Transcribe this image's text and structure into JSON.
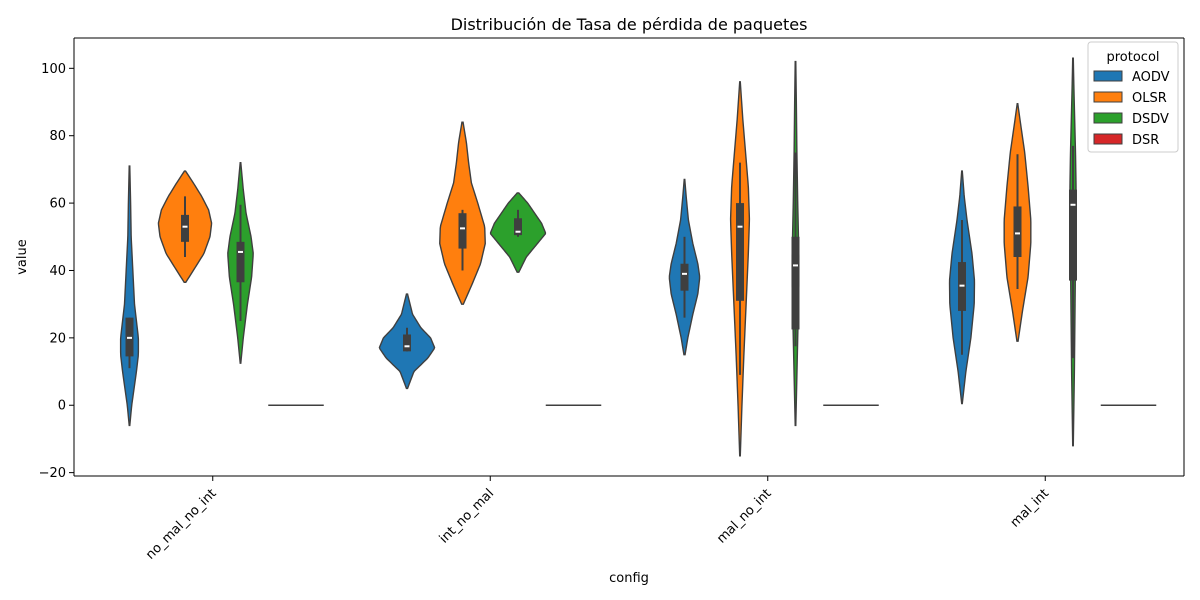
{
  "chart_data": {
    "type": "violin",
    "title": "Distribución de Tasa de pérdida de paquetes",
    "xlabel": "config",
    "ylabel": "value",
    "ylim": [
      -21,
      109
    ],
    "yticks": [
      -20,
      0,
      20,
      40,
      60,
      80,
      100
    ],
    "categories": [
      "no_mal_no_int",
      "int_no_mal",
      "mal_no_int",
      "mal_int"
    ],
    "legend": {
      "title": "protocol",
      "position": "top-right"
    },
    "series": [
      {
        "name": "AODV",
        "color": "#1f77b4",
        "violins": [
          {
            "min": -6,
            "max": 71,
            "q1": 14.5,
            "median": 20,
            "q3": 26,
            "whisker_low": 11,
            "whisker_high": 26,
            "profile": [
              [
                -6,
                0.01
              ],
              [
                0,
                0.08
              ],
              [
                10,
                0.25
              ],
              [
                15,
                0.32
              ],
              [
                20,
                0.32
              ],
              [
                25,
                0.25
              ],
              [
                30,
                0.18
              ],
              [
                40,
                0.12
              ],
              [
                50,
                0.06
              ],
              [
                60,
                0.04
              ],
              [
                71,
                0.01
              ]
            ]
          },
          {
            "min": 5,
            "max": 33,
            "q1": 16,
            "median": 17.5,
            "q3": 21,
            "whisker_low": 16,
            "whisker_high": 23,
            "profile": [
              [
                5,
                0.02
              ],
              [
                10,
                0.25
              ],
              [
                14,
                0.75
              ],
              [
                17,
                1.0
              ],
              [
                20,
                0.85
              ],
              [
                23,
                0.5
              ],
              [
                27,
                0.2
              ],
              [
                33,
                0.02
              ]
            ]
          },
          {
            "min": 15,
            "max": 67,
            "q1": 34,
            "median": 39,
            "q3": 42,
            "whisker_low": 26,
            "whisker_high": 50,
            "profile": [
              [
                15,
                0.02
              ],
              [
                20,
                0.12
              ],
              [
                27,
                0.3
              ],
              [
                33,
                0.48
              ],
              [
                38,
                0.55
              ],
              [
                42,
                0.48
              ],
              [
                48,
                0.3
              ],
              [
                55,
                0.14
              ],
              [
                62,
                0.06
              ],
              [
                67,
                0.01
              ]
            ]
          },
          {
            "min": 0.5,
            "max": 69.5,
            "q1": 28,
            "median": 35.5,
            "q3": 42.5,
            "whisker_low": 15,
            "whisker_high": 55,
            "profile": [
              [
                0.5,
                0.01
              ],
              [
                10,
                0.14
              ],
              [
                20,
                0.32
              ],
              [
                30,
                0.44
              ],
              [
                37,
                0.45
              ],
              [
                45,
                0.36
              ],
              [
                55,
                0.18
              ],
              [
                62,
                0.08
              ],
              [
                69.5,
                0.01
              ]
            ]
          }
        ]
      },
      {
        "name": "OLSR",
        "color": "#ff7f0e",
        "violins": [
          {
            "min": 36.5,
            "max": 69.5,
            "q1": 48.5,
            "median": 53,
            "q3": 56.5,
            "whisker_low": 44,
            "whisker_high": 62,
            "profile": [
              [
                36.5,
                0.03
              ],
              [
                40,
                0.3
              ],
              [
                45,
                0.68
              ],
              [
                50,
                0.9
              ],
              [
                54,
                0.96
              ],
              [
                58,
                0.85
              ],
              [
                62,
                0.6
              ],
              [
                66,
                0.3
              ],
              [
                69.5,
                0.02
              ]
            ]
          },
          {
            "min": 30,
            "max": 84,
            "q1": 46.5,
            "median": 52.5,
            "q3": 57,
            "whisker_low": 40,
            "whisker_high": 58,
            "profile": [
              [
                30,
                0.03
              ],
              [
                36,
                0.35
              ],
              [
                42,
                0.65
              ],
              [
                48,
                0.82
              ],
              [
                53,
                0.8
              ],
              [
                60,
                0.55
              ],
              [
                66,
                0.32
              ],
              [
                72,
                0.22
              ],
              [
                78,
                0.14
              ],
              [
                84,
                0.02
              ]
            ]
          },
          {
            "min": -15,
            "max": 96,
            "q1": 31,
            "median": 53,
            "q3": 60,
            "whisker_low": 9,
            "whisker_high": 72,
            "profile": [
              [
                -15,
                0.01
              ],
              [
                0,
                0.07
              ],
              [
                15,
                0.14
              ],
              [
                30,
                0.22
              ],
              [
                45,
                0.3
              ],
              [
                55,
                0.34
              ],
              [
                65,
                0.3
              ],
              [
                75,
                0.2
              ],
              [
                85,
                0.1
              ],
              [
                96,
                0.01
              ]
            ]
          },
          {
            "min": 19,
            "max": 89.5,
            "q1": 44,
            "median": 51,
            "q3": 59,
            "whisker_low": 34.5,
            "whisker_high": 74.5,
            "profile": [
              [
                19,
                0.02
              ],
              [
                28,
                0.18
              ],
              [
                38,
                0.38
              ],
              [
                48,
                0.48
              ],
              [
                55,
                0.48
              ],
              [
                65,
                0.38
              ],
              [
                75,
                0.26
              ],
              [
                83,
                0.12
              ],
              [
                89.5,
                0.01
              ]
            ]
          }
        ]
      },
      {
        "name": "DSDV",
        "color": "#2ca02c",
        "violins": [
          {
            "min": 12.5,
            "max": 72,
            "q1": 36.5,
            "median": 45.5,
            "q3": 48.5,
            "whisker_low": 25,
            "whisker_high": 59.5,
            "profile": [
              [
                12.5,
                0.01
              ],
              [
                20,
                0.1
              ],
              [
                30,
                0.25
              ],
              [
                38,
                0.4
              ],
              [
                45,
                0.46
              ],
              [
                50,
                0.38
              ],
              [
                57,
                0.2
              ],
              [
                64,
                0.1
              ],
              [
                72,
                0.01
              ]
            ]
          },
          {
            "min": 39.5,
            "max": 63,
            "q1": 50.5,
            "median": 51.5,
            "q3": 55.5,
            "whisker_low": 50,
            "whisker_high": 58,
            "profile": [
              [
                39.5,
                0.03
              ],
              [
                44,
                0.3
              ],
              [
                48,
                0.7
              ],
              [
                51,
                1.0
              ],
              [
                54,
                0.85
              ],
              [
                57,
                0.6
              ],
              [
                60,
                0.35
              ],
              [
                63,
                0.03
              ]
            ]
          },
          {
            "min": -6,
            "max": 102,
            "q1": 22.5,
            "median": 41.5,
            "q3": 50,
            "whisker_low": 17.5,
            "whisker_high": 75,
            "profile": [
              [
                -6,
                0.01
              ],
              [
                5,
                0.04
              ],
              [
                20,
                0.08
              ],
              [
                35,
                0.12
              ],
              [
                45,
                0.12
              ],
              [
                60,
                0.08
              ],
              [
                75,
                0.05
              ],
              [
                90,
                0.03
              ],
              [
                102,
                0.01
              ]
            ]
          },
          {
            "min": -12,
            "max": 103,
            "q1": 37,
            "median": 59.5,
            "q3": 64,
            "whisker_low": 14,
            "whisker_high": 77,
            "profile": [
              [
                -12,
                0.01
              ],
              [
                10,
                0.05
              ],
              [
                35,
                0.08
              ],
              [
                55,
                0.1
              ],
              [
                65,
                0.11
              ],
              [
                75,
                0.09
              ],
              [
                85,
                0.06
              ],
              [
                95,
                0.03
              ],
              [
                103,
                0.01
              ]
            ]
          }
        ]
      },
      {
        "name": "DSR",
        "color": "#d62728",
        "violins": [
          {
            "value": 0
          },
          {
            "value": 0
          },
          {
            "value": 0
          },
          {
            "value": 0
          }
        ]
      }
    ]
  }
}
